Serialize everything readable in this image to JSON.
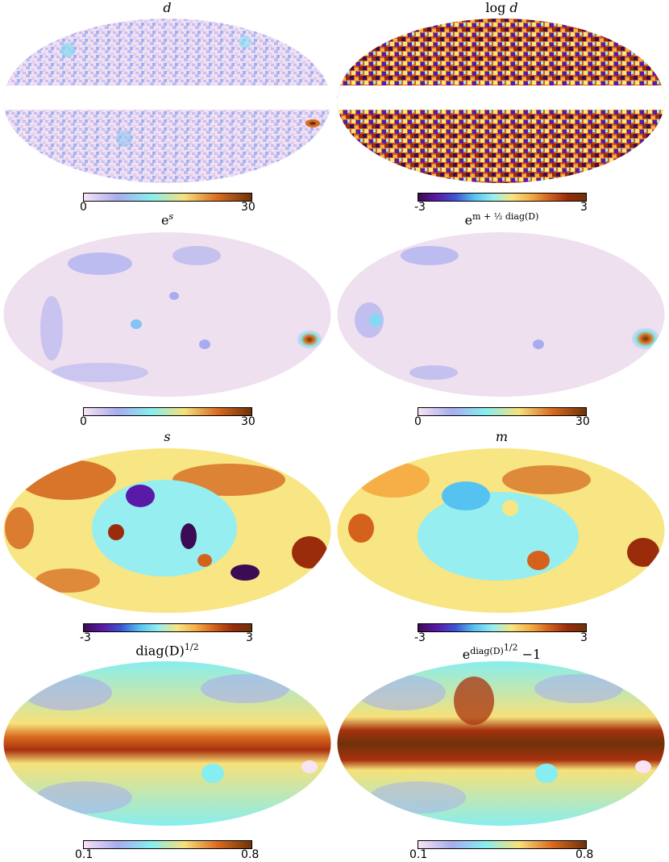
{
  "colors": {
    "seq": [
      "#f8e3f3",
      "#c9c6ef",
      "#a8acef",
      "#80c3f2",
      "#86eef0",
      "#d2f1a6",
      "#f6e17a",
      "#f4b24a",
      "#d96a1f",
      "#a8310e",
      "#6e3209"
    ],
    "div": [
      "#3b0b55",
      "#5a1aa8",
      "#3e55d4",
      "#56c2f1",
      "#96eef1",
      "#f8e583",
      "#f6ae47",
      "#d4621c",
      "#9a2c0c",
      "#6b3209"
    ],
    "plane_cut": "#ffffff"
  },
  "panels": [
    {
      "id": "d",
      "title_main": "d",
      "title_sup": "",
      "colormap": "seq",
      "masked_band": true,
      "tick_min": "0",
      "tick_max": "30"
    },
    {
      "id": "log-d",
      "title_main": "log ",
      "title_italic": "d",
      "title_sup": "",
      "colormap": "div",
      "masked_band": true,
      "tick_min": "-3",
      "tick_max": "3"
    },
    {
      "id": "exp-s",
      "title_main": "e",
      "title_sup": "s",
      "colormap": "seq",
      "masked_band": false,
      "tick_min": "0",
      "tick_max": "30"
    },
    {
      "id": "exp-m-half-diag-d",
      "title_main": "e",
      "title_sup": "m + ½ diag(D)",
      "colormap": "seq",
      "masked_band": false,
      "tick_min": "0",
      "tick_max": "30"
    },
    {
      "id": "s",
      "title_main": "",
      "title_italic": "s",
      "title_sup": "",
      "colormap": "div",
      "masked_band": false,
      "tick_min": "-3",
      "tick_max": "3"
    },
    {
      "id": "m",
      "title_main": "",
      "title_italic": "m",
      "title_sup": "",
      "colormap": "div",
      "masked_band": false,
      "tick_min": "-3",
      "tick_max": "3"
    },
    {
      "id": "diag-d-sqrt",
      "title_main": "diag(D)",
      "title_sup": "1/2",
      "colormap": "seq",
      "masked_band": false,
      "tick_min": "0.1",
      "tick_max": "0.8"
    },
    {
      "id": "exp-diag-d-sqrt-minus-1",
      "title_main": "e",
      "title_sup": "diag(D)",
      "title_sup2": "1/2",
      "title_suffix": "−1",
      "colormap": "seq",
      "masked_band": false,
      "tick_min": "0.1",
      "tick_max": "0.8"
    }
  ]
}
